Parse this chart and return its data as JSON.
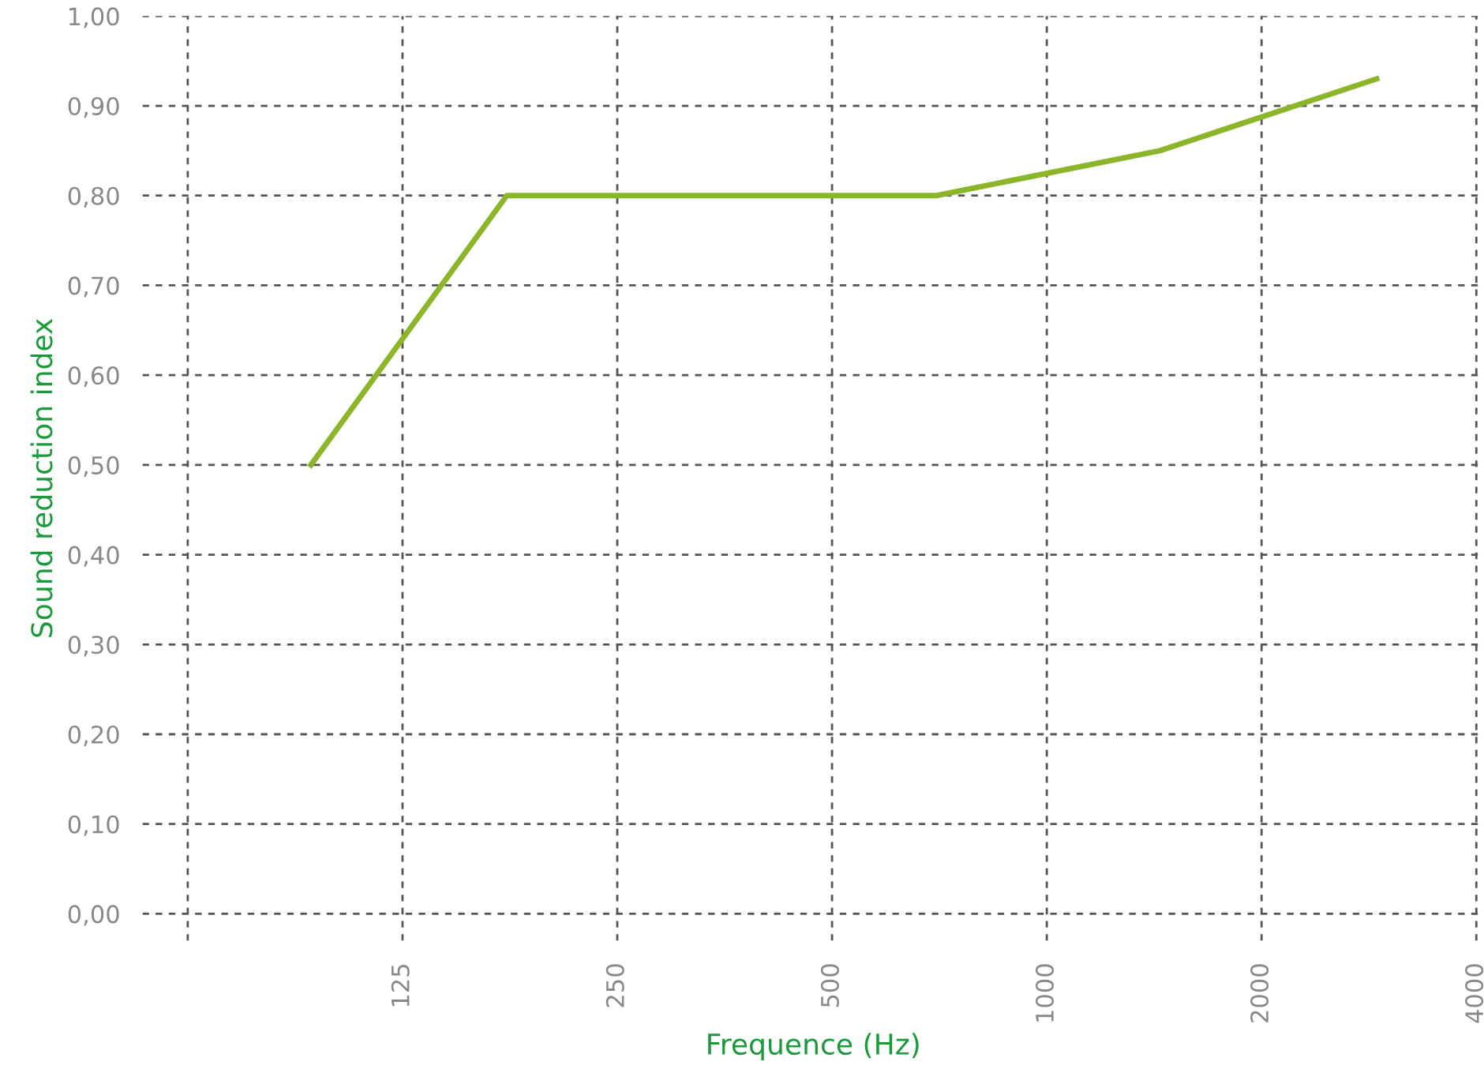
{
  "chart_data": {
    "type": "line",
    "xlabel": "Frequence (Hz)",
    "ylabel": "Sound reduction index",
    "x": [
      93,
      175,
      700,
      1440,
      2900
    ],
    "series": [
      {
        "color": "#8cb62a",
        "values": [
          0.5,
          0.8,
          0.8,
          0.85,
          0.93
        ]
      }
    ],
    "log": "x",
    "xlim": [
      54,
      4100
    ],
    "ylim": [
      -0.03,
      1.0
    ],
    "xticks": [
      {
        "value": 62.5,
        "label": null
      },
      125,
      250,
      500,
      1000,
      2000,
      4000
    ],
    "yticks": [
      {
        "value": 0,
        "label": "0,00"
      },
      {
        "value": 0.1,
        "label": "0,10"
      },
      {
        "value": 0.2,
        "label": "0,20"
      },
      {
        "value": 0.3,
        "label": "0,30"
      },
      {
        "value": 0.4,
        "label": "0,40"
      },
      {
        "value": 0.5,
        "label": "0,50"
      },
      {
        "value": 0.6,
        "label": "0,60"
      },
      {
        "value": 0.7,
        "label": "0,70"
      },
      {
        "value": 0.8,
        "label": "0,80"
      },
      {
        "value": 0.9,
        "label": "0,90"
      },
      {
        "value": 1.0,
        "label": "1,00"
      }
    ],
    "grid": true,
    "line_style": "solid",
    "marker": "none"
  }
}
